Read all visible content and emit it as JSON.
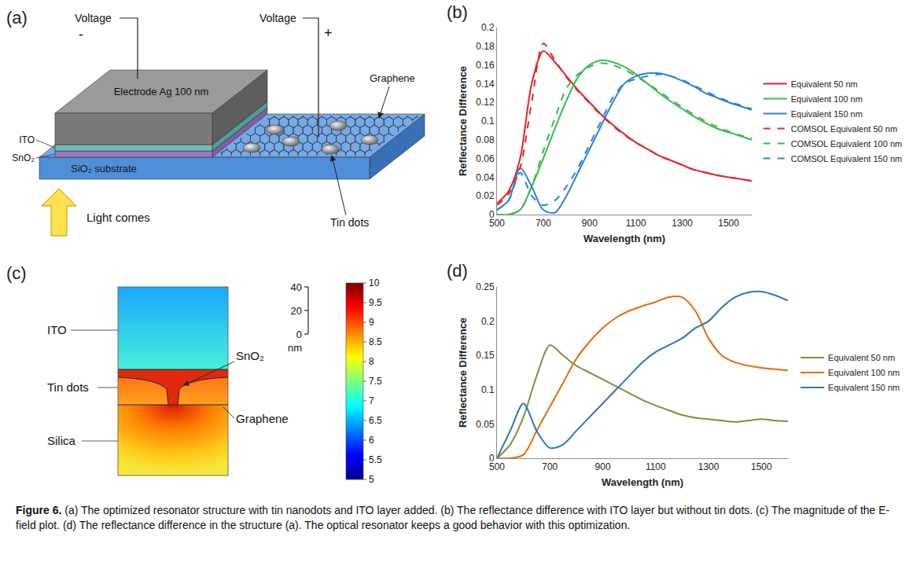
{
  "diagram_a": {
    "panel_label": "(a)",
    "left_terminal": {
      "label": "Voltage",
      "sign": "-"
    },
    "right_terminal": {
      "label": "Voltage",
      "sign": "+"
    },
    "layers": {
      "electrode": "Electrode Ag 100 nm",
      "ito": "ITO",
      "sno2": "SnO₂",
      "substrate": "SiO₂ substrate"
    },
    "graphene": "Graphene",
    "dots": "Tin dots",
    "light": "Light comes"
  },
  "chart_data": [
    {
      "panel_label": "(b)",
      "type": "line",
      "x_label": "Wavelength (nm)",
      "y_label": "Reflectance Difference",
      "x": [
        500,
        550,
        600,
        650,
        700,
        750,
        800,
        850,
        900,
        950,
        1000,
        1050,
        1100,
        1150,
        1200,
        1250,
        1300,
        1350,
        1400,
        1450,
        1500,
        1550,
        1600
      ],
      "xlim": [
        500,
        1600
      ],
      "xticks": [
        500,
        700,
        900,
        1100,
        1300,
        1500
      ],
      "ylim": [
        0,
        0.2
      ],
      "yticks": [
        0,
        0.02,
        0.04,
        0.06,
        0.08,
        0.1,
        0.12,
        0.14,
        0.16,
        0.18,
        0.2
      ],
      "grid": false,
      "legend": "right",
      "series": [
        {
          "name": "Equivalent 50 nm",
          "color": "#e3262a",
          "line_style": "solid",
          "values": [
            0.012,
            0.025,
            0.06,
            0.14,
            0.175,
            0.163,
            0.148,
            0.133,
            0.12,
            0.107,
            0.096,
            0.086,
            0.077,
            0.07,
            0.063,
            0.058,
            0.053,
            0.048,
            0.045,
            0.042,
            0.04,
            0.038,
            0.036
          ]
        },
        {
          "name": "Equivalent 100 nm",
          "color": "#3bb94a",
          "line_style": "solid",
          "values": [
            0,
            0,
            0.005,
            0.03,
            0.06,
            0.092,
            0.122,
            0.147,
            0.16,
            0.165,
            0.163,
            0.158,
            0.15,
            0.14,
            0.13,
            0.121,
            0.113,
            0.105,
            0.098,
            0.092,
            0.088,
            0.084,
            0.08
          ]
        },
        {
          "name": "Equivalent 150 nm",
          "color": "#2e7fd8",
          "line_style": "solid",
          "values": [
            0.005,
            0.015,
            0.05,
            0.03,
            0.005,
            0.002,
            0.02,
            0.045,
            0.07,
            0.095,
            0.12,
            0.14,
            0.148,
            0.151,
            0.151,
            0.148,
            0.143,
            0.137,
            0.13,
            0.125,
            0.12,
            0.116,
            0.112
          ]
        },
        {
          "name": "COMSOL Equivalent 50 nm",
          "color": "#e3262a",
          "line_style": "dashed",
          "values": [
            0.01,
            0.022,
            0.05,
            0.12,
            0.183,
            0.165,
            0.147,
            0.132,
            0.119,
            0.106,
            0.095,
            0.085,
            0.077,
            0.07,
            0.063,
            0.058,
            0.053,
            0.048,
            0.045,
            0.042,
            0.04,
            0.038,
            0.036
          ]
        },
        {
          "name": "COMSOL Equivalent 100 nm",
          "color": "#3bb94a",
          "line_style": "dashed",
          "values": [
            0,
            0,
            0.005,
            0.03,
            0.068,
            0.103,
            0.135,
            0.15,
            0.158,
            0.162,
            0.16,
            0.155,
            0.148,
            0.14,
            0.132,
            0.123,
            0.115,
            0.107,
            0.1,
            0.094,
            0.089,
            0.085,
            0.082
          ]
        },
        {
          "name": "COMSOL Equivalent 150 nm",
          "color": "#2e7fd8",
          "line_style": "dashed",
          "values": [
            0.005,
            0.015,
            0.045,
            0.02,
            0.01,
            0.015,
            0.03,
            0.05,
            0.075,
            0.1,
            0.125,
            0.14,
            0.145,
            0.148,
            0.15,
            0.148,
            0.144,
            0.138,
            0.132,
            0.126,
            0.121,
            0.117,
            0.113
          ]
        }
      ]
    },
    {
      "panel_label": "(d)",
      "type": "line",
      "x_label": "Wavelength (nm)",
      "y_label": "Reflectance Difference",
      "x": [
        500,
        550,
        600,
        650,
        700,
        750,
        800,
        850,
        900,
        950,
        1000,
        1050,
        1100,
        1150,
        1200,
        1250,
        1300,
        1350,
        1400,
        1450,
        1500,
        1550,
        1600
      ],
      "xlim": [
        500,
        1600
      ],
      "xticks": [
        500,
        700,
        900,
        1100,
        1300,
        1500
      ],
      "ylim": [
        0,
        0.25
      ],
      "yticks": [
        0,
        0.05,
        0.1,
        0.15,
        0.2,
        0.25
      ],
      "grid": false,
      "legend": "right",
      "series": [
        {
          "name": "Equivalent 50 nm",
          "color": "#77933c",
          "line_style": "solid",
          "values": [
            0,
            0.02,
            0.06,
            0.12,
            0.165,
            0.15,
            0.135,
            0.125,
            0.115,
            0.105,
            0.095,
            0.085,
            0.077,
            0.07,
            0.063,
            0.059,
            0.057,
            0.055,
            0.053,
            0.055,
            0.057,
            0.055,
            0.054
          ]
        },
        {
          "name": "Equivalent 100 nm",
          "color": "#e36c09",
          "line_style": "solid",
          "values": [
            0,
            0,
            0.005,
            0.04,
            0.075,
            0.11,
            0.145,
            0.17,
            0.19,
            0.205,
            0.215,
            0.222,
            0.228,
            0.235,
            0.235,
            0.215,
            0.175,
            0.15,
            0.14,
            0.135,
            0.132,
            0.13,
            0.128
          ]
        },
        {
          "name": "Equivalent 150 nm",
          "color": "#2e75b6",
          "line_style": "solid",
          "values": [
            0,
            0.04,
            0.08,
            0.04,
            0.015,
            0.02,
            0.04,
            0.06,
            0.08,
            0.1,
            0.12,
            0.14,
            0.155,
            0.165,
            0.175,
            0.19,
            0.2,
            0.22,
            0.235,
            0.242,
            0.243,
            0.238,
            0.23
          ]
        }
      ]
    }
  ],
  "field_c": {
    "panel_label": "(c)",
    "labels": {
      "ito": "ITO",
      "dots": "Tin dots",
      "silica": "Silica",
      "sno2": "SnO₂",
      "graphene": "Graphene"
    },
    "scale_bar": {
      "ticks": [
        40,
        20,
        0
      ],
      "unit": "nm"
    },
    "colorbar": {
      "range": [
        5,
        10
      ],
      "ticks": [
        5,
        5.5,
        6,
        6.5,
        7,
        7.5,
        8,
        8.5,
        9,
        9.5,
        10
      ]
    }
  },
  "caption": {
    "label": "Figure 6.",
    "text": "(a) The optimized resonator structure with tin nanodots and ITO layer added. (b) The reflectance difference with ITO layer but without tin dots. (c) The magnitude of the E-field plot. (d) The reflectance difference in the structure (a). The optical resonator keeps a good behavior with this optimization."
  }
}
